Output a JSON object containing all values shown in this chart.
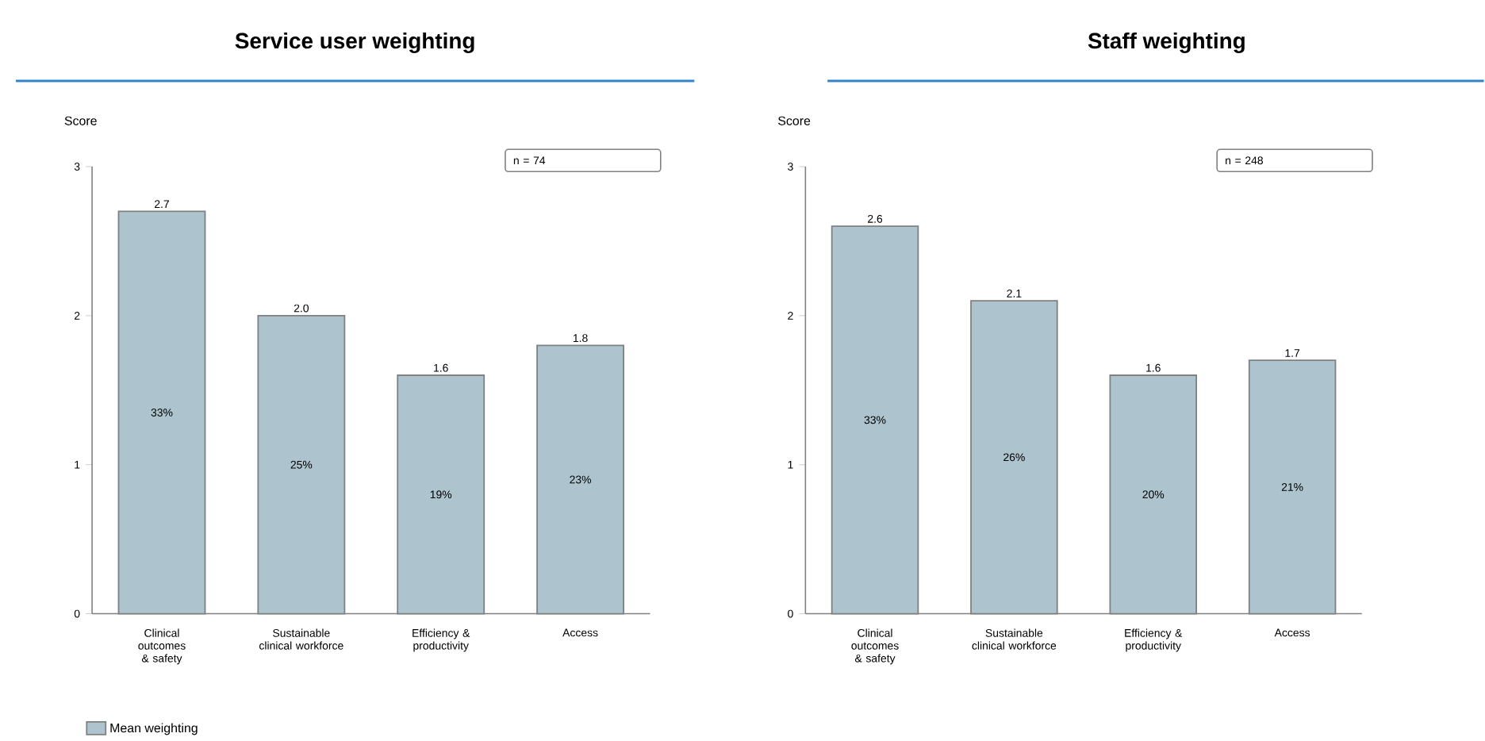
{
  "chart_data": [
    {
      "type": "bar",
      "title": "Service user weighting",
      "ylabel": "Score",
      "categories": [
        "Clinical outcomes & safety",
        "Sustainable clinical workforce",
        "Efficiency & productivity",
        "Access"
      ],
      "series": [
        {
          "name": "Mean weighting",
          "color": "#adc4ce",
          "values": [
            2.7,
            2.0,
            1.6,
            1.8
          ],
          "value_labels": [
            "2.7",
            "2.0",
            "1.6",
            "1.8"
          ]
        }
      ],
      "ylim": [
        0,
        3
      ],
      "yticks": [
        0,
        1,
        2,
        3
      ],
      "legend": "bottom left",
      "annotations": [
        "n = 74",
        "33%",
        "25%",
        "19%",
        "23%"
      ]
    },
    {
      "type": "bar",
      "title": "Staff weighting",
      "ylabel": "Score",
      "categories": [
        "Clinical outcomes & safety",
        "Sustainable clinical workforce",
        "Efficiency & productivity",
        "Access"
      ],
      "series": [
        {
          "color": "#adc4ce",
          "values": [
            2.6,
            2.1,
            1.6,
            1.7
          ],
          "value_labels": [
            "2.6",
            "2.1",
            "1.6",
            "1.7"
          ]
        }
      ],
      "ylim": [
        0,
        3
      ],
      "yticks": [
        0,
        1,
        2,
        3
      ],
      "annotations": [
        "n = 248",
        "33%",
        "26%",
        "20%",
        "21%"
      ]
    }
  ]
}
